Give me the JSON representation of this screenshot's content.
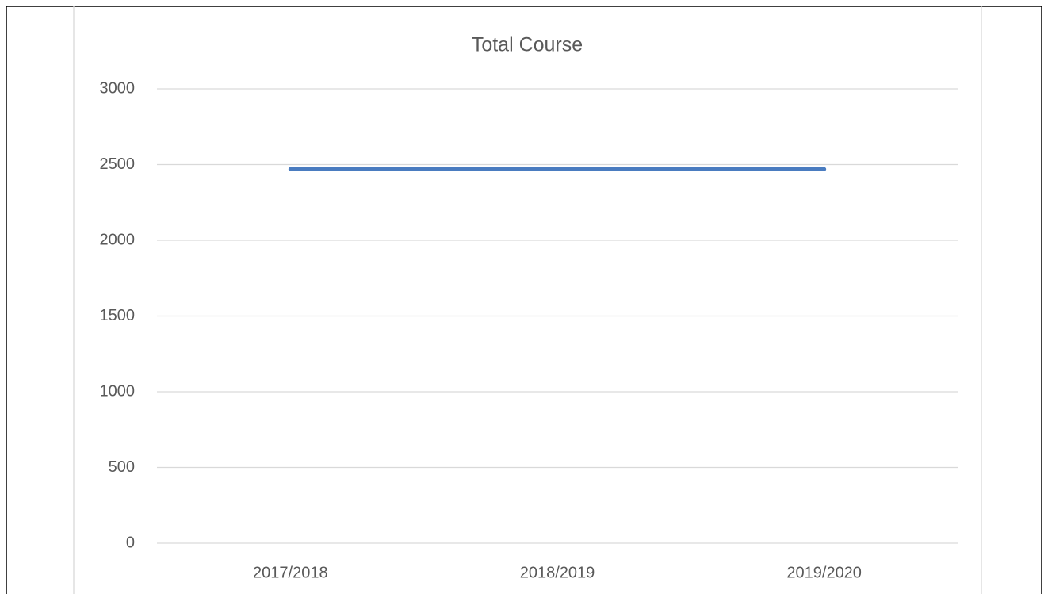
{
  "chart_data": {
    "type": "line",
    "title": "Total Course",
    "categories": [
      "2017/2018",
      "2018/2019",
      "2019/2020"
    ],
    "series": [
      {
        "name": "Total Course",
        "color": "#4a7cc0",
        "values": [
          2470,
          2470,
          2470
        ]
      }
    ],
    "ylim": [
      0,
      3000
    ],
    "yticks": [
      0,
      500,
      1000,
      1500,
      2000,
      2500,
      3000
    ],
    "grid": true
  }
}
